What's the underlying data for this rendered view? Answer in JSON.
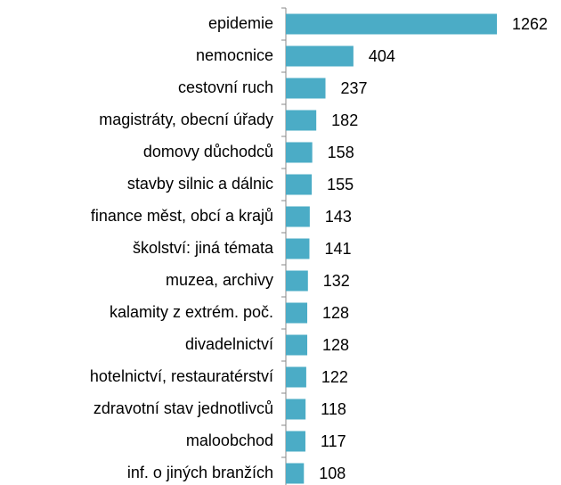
{
  "chart_data": {
    "type": "barh",
    "categories": [
      "epidemie",
      "nemocnice",
      "cestovní ruch",
      "magistráty, obecní úřady",
      "domovy důchodců",
      "stavby silnic a dálnic",
      "finance měst, obcí a krajů",
      "školství: jiná témata",
      "muzea, archivy",
      "kalamity z extrém. poč.",
      "divadelnictví",
      "hotelnictví, restauratérství",
      "zdravotní stav jednotlivců",
      "maloobchod",
      "inf. o jiných branžích"
    ],
    "values": [
      1262,
      404,
      237,
      182,
      158,
      155,
      143,
      141,
      132,
      128,
      128,
      122,
      118,
      117,
      108
    ],
    "color": "#4bacc6"
  }
}
